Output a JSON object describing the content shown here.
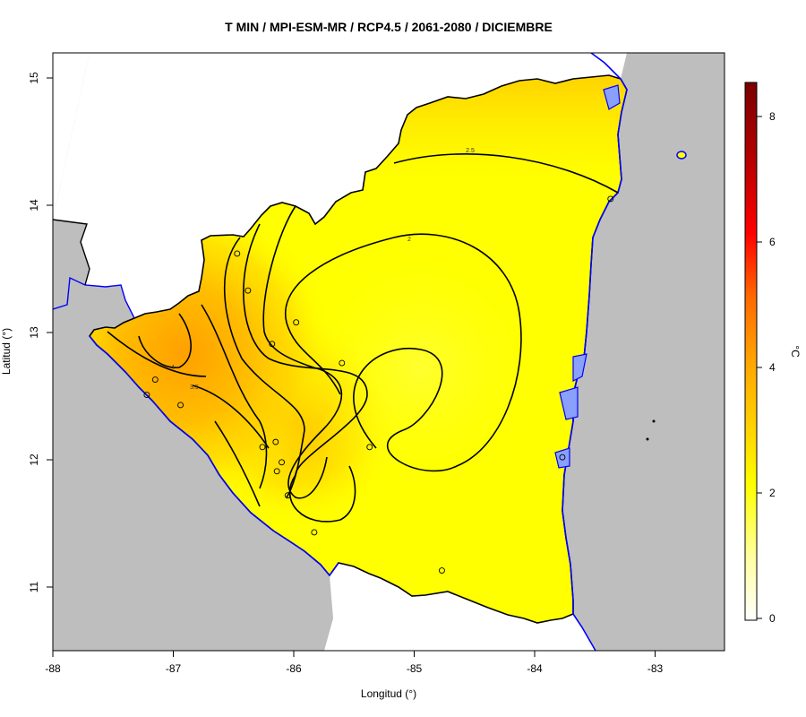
{
  "title": "T MIN / MPI-ESM-MR / RCP4.5 / 2061-2080 / DICIEMBRE",
  "x_axis": {
    "label": "Longitud (°)",
    "ticks": [
      {
        "value": -88,
        "label": "-88"
      },
      {
        "value": -87,
        "label": "-87"
      },
      {
        "value": -86,
        "label": "-86"
      },
      {
        "value": -85,
        "label": "-85"
      },
      {
        "value": -84,
        "label": "-84"
      },
      {
        "value": -83,
        "label": "-83"
      }
    ]
  },
  "y_axis": {
    "label": "Latitud (°)",
    "ticks": [
      {
        "value": 11,
        "label": "11"
      },
      {
        "value": 12,
        "label": "12"
      },
      {
        "value": 13,
        "label": "13"
      },
      {
        "value": 14,
        "label": "14"
      },
      {
        "value": 15,
        "label": "15"
      }
    ]
  },
  "colorbar": {
    "unit": "°C",
    "ticks": [
      {
        "value": 0,
        "label": "0"
      },
      {
        "value": 2,
        "label": "2"
      },
      {
        "value": 4,
        "label": "4"
      },
      {
        "value": 6,
        "label": "6"
      },
      {
        "value": 8,
        "label": "8"
      }
    ],
    "colors": [
      "#ffffff",
      "#ffff9e",
      "#ffff00",
      "#ffd200",
      "#ffa500",
      "#ff6a00",
      "#ff0000",
      "#b30000",
      "#7a0000"
    ]
  },
  "contour_labels": [
    {
      "text": "2.5"
    },
    {
      "text": "2"
    },
    {
      "text": "4"
    },
    {
      "text": "3.5"
    }
  ],
  "colors": {
    "land_outside": "#bebebe",
    "water": "#0000ff",
    "border": "#000000",
    "field_low": "#ffff00",
    "field_high": "#ffa500"
  },
  "stations": [
    {
      "lon": -86.47,
      "lat": 13.62
    },
    {
      "lon": -86.38,
      "lat": 13.33
    },
    {
      "lon": -85.98,
      "lat": 13.08
    },
    {
      "lon": -86.18,
      "lat": 12.91
    },
    {
      "lon": -85.6,
      "lat": 12.76
    },
    {
      "lon": -87.15,
      "lat": 12.63
    },
    {
      "lon": -86.94,
      "lat": 12.43
    },
    {
      "lon": -87.22,
      "lat": 12.51
    },
    {
      "lon": -86.15,
      "lat": 12.14
    },
    {
      "lon": -86.26,
      "lat": 12.1
    },
    {
      "lon": -85.37,
      "lat": 12.1
    },
    {
      "lon": -86.1,
      "lat": 11.98
    },
    {
      "lon": -86.14,
      "lat": 11.91
    },
    {
      "lon": -86.05,
      "lat": 11.72
    },
    {
      "lon": -85.83,
      "lat": 11.43
    },
    {
      "lon": -84.77,
      "lat": 11.13
    },
    {
      "lon": -83.77,
      "lat": 12.02
    },
    {
      "lon": -83.37,
      "lat": 14.05
    }
  ]
}
